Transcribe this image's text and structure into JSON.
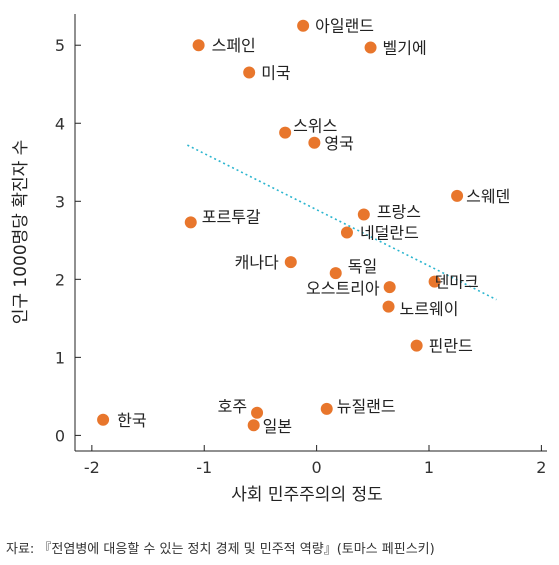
{
  "chart_data": {
    "type": "scatter",
    "title": "",
    "xlabel": "사회 민주주의의 정도",
    "ylabel": "인구 1000명당 확진자 수",
    "xlim": [
      -2.15,
      2.05
    ],
    "ylim": [
      -0.2,
      5.4
    ],
    "x_ticks": [
      -2,
      -1,
      0,
      1,
      2
    ],
    "y_ticks": [
      0,
      1,
      2,
      3,
      4,
      5
    ],
    "marker_color": "#e8762c",
    "trendline": {
      "style": "dotted",
      "color": "#2bb5cf",
      "x": [
        -1.15,
        1.6
      ],
      "y": [
        3.72,
        1.74
      ]
    },
    "points": [
      {
        "label": "아일랜드",
        "x": -0.12,
        "y": 5.25
      },
      {
        "label": "스페인",
        "x": -1.05,
        "y": 5.0
      },
      {
        "label": "벨기에",
        "x": 0.48,
        "y": 4.97
      },
      {
        "label": "미국",
        "x": -0.6,
        "y": 4.65
      },
      {
        "label": "스위스",
        "x": -0.28,
        "y": 3.88
      },
      {
        "label": "영국",
        "x": -0.02,
        "y": 3.75
      },
      {
        "label": "스웨덴",
        "x": 1.25,
        "y": 3.07
      },
      {
        "label": "프랑스",
        "x": 0.42,
        "y": 2.83
      },
      {
        "label": "포르투갈",
        "x": -1.12,
        "y": 2.73
      },
      {
        "label": "네덜란드",
        "x": 0.27,
        "y": 2.6
      },
      {
        "label": "캐나다",
        "x": -0.23,
        "y": 2.22
      },
      {
        "label": "독일",
        "x": 0.17,
        "y": 2.08
      },
      {
        "label": "덴마크",
        "x": 1.05,
        "y": 1.97
      },
      {
        "label": "오스트리아",
        "x": 0.65,
        "y": 1.9
      },
      {
        "label": "노르웨이",
        "x": 0.64,
        "y": 1.65
      },
      {
        "label": "핀란드",
        "x": 0.89,
        "y": 1.15
      },
      {
        "label": "뉴질랜드",
        "x": 0.09,
        "y": 0.34
      },
      {
        "label": "호주",
        "x": -0.53,
        "y": 0.29
      },
      {
        "label": "한국",
        "x": -1.9,
        "y": 0.2
      },
      {
        "label": "일본",
        "x": -0.56,
        "y": 0.13
      }
    ]
  },
  "source": "자료: 『전염병에 대응할 수 있는 정치 경제 및 민주적 역량』(토마스 페핀스키)"
}
